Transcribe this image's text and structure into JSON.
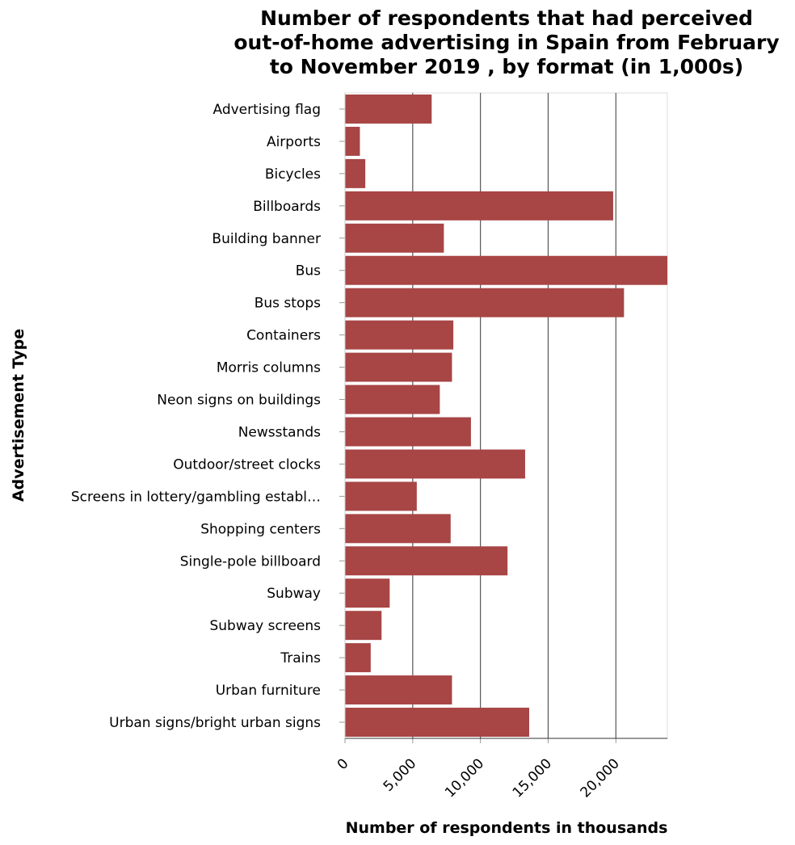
{
  "chart_data": {
    "type": "bar",
    "orientation": "horizontal",
    "title": "Number of respondents that had perceived out-of-home advertising in Spain from February to November 2019 , by format (in 1,000s)",
    "title_lines": [
      "Number of respondents that had perceived",
      "out-of-home advertising in Spain from February",
      "to November 2019 , by format (in 1,000s)"
    ],
    "xlabel": "Number of respondents in thousands",
    "ylabel": "Advertisement Type",
    "xlim": [
      0,
      23800
    ],
    "xticks": [
      0,
      5000,
      10000,
      15000,
      20000
    ],
    "xtick_labels": [
      "0",
      "5,000",
      "10,000",
      "15,000",
      "20,000"
    ],
    "grid": "vertical",
    "bar_color": "#a84545",
    "categories": [
      "Advertising flag",
      "Airports",
      "Bicycles",
      "Billboards",
      "Building banner",
      "Bus",
      "Bus stops",
      "Containers",
      "Morris columns",
      "Neon signs on buildings",
      "Newsstands",
      "Outdoor/street clocks",
      "Screens in lottery/gambling establ…",
      "Shopping centers",
      "Single-pole billboard",
      "Subway",
      "Subway screens",
      "Trains",
      "Urban furniture",
      "Urban signs/bright urban signs"
    ],
    "values": [
      6400,
      1100,
      1500,
      19800,
      7300,
      23800,
      20600,
      8000,
      7900,
      7000,
      9300,
      13300,
      5300,
      7800,
      12000,
      3300,
      2700,
      1900,
      7900,
      13600
    ]
  }
}
